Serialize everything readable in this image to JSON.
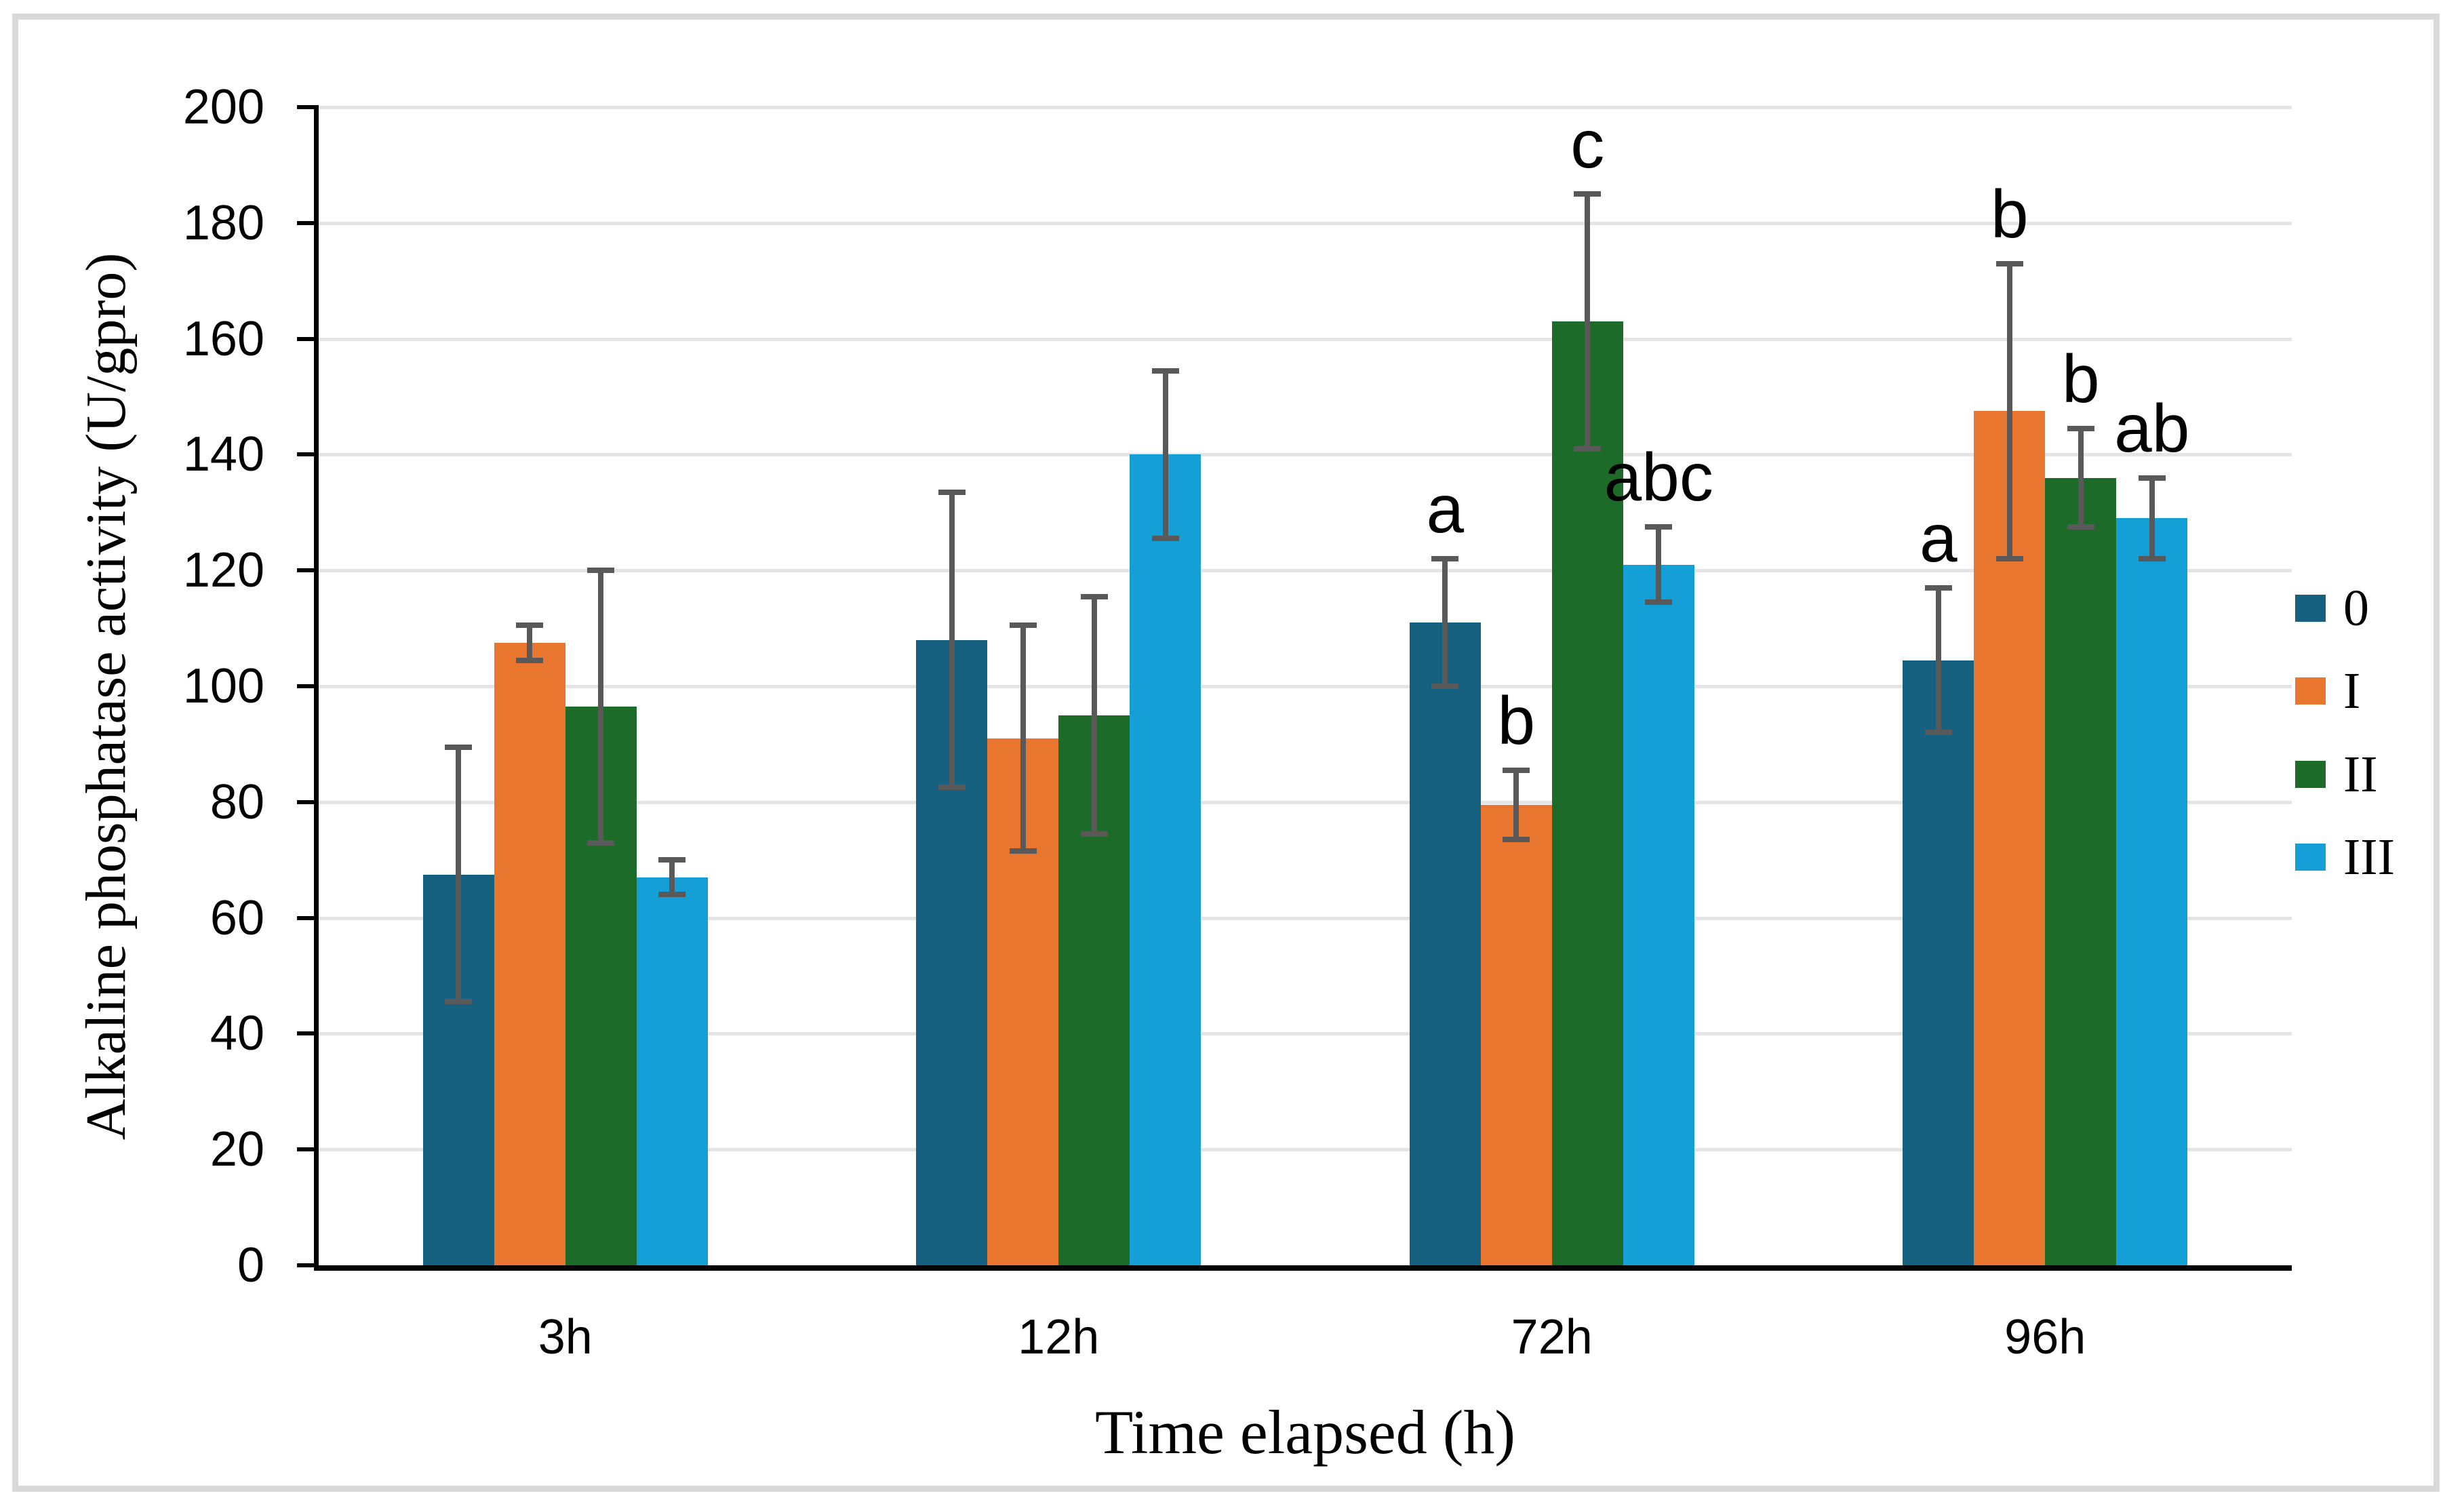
{
  "figure": {
    "background_color": "#ffffff",
    "border_color": "#d9d9d9"
  },
  "chart_data": {
    "type": "bar",
    "title": "",
    "xlabel": "Time elapsed (h)",
    "ylabel": "Alkaline phosphatase activity (U/gpro)",
    "categories": [
      "3h",
      "12h",
      "72h",
      "96h"
    ],
    "series": [
      {
        "name": "0",
        "color": "#166080",
        "values": [
          67.5,
          108,
          111,
          104.5
        ],
        "errors": [
          22,
          25.5,
          11,
          12.5
        ]
      },
      {
        "name": "I",
        "color": "#e8762e",
        "values": [
          107.5,
          91,
          79.5,
          147.5
        ],
        "errors": [
          3,
          19.5,
          6,
          25.5
        ]
      },
      {
        "name": "II",
        "color": "#1d6b28",
        "values": [
          96.5,
          95,
          163,
          136
        ],
        "errors": [
          23.5,
          20.5,
          22,
          8.5
        ]
      },
      {
        "name": "III",
        "color": "#14a0d6",
        "values": [
          67,
          140,
          121,
          129
        ],
        "errors": [
          3,
          14.5,
          6.5,
          7
        ]
      }
    ],
    "annotations": [
      {
        "category": "72h",
        "series": "0",
        "text": "a"
      },
      {
        "category": "72h",
        "series": "I",
        "text": "b"
      },
      {
        "category": "72h",
        "series": "II",
        "text": "c"
      },
      {
        "category": "72h",
        "series": "III",
        "text": "abc"
      },
      {
        "category": "96h",
        "series": "0",
        "text": "a"
      },
      {
        "category": "96h",
        "series": "I",
        "text": "b"
      },
      {
        "category": "96h",
        "series": "II",
        "text": "b"
      },
      {
        "category": "96h",
        "series": "III",
        "text": "ab"
      }
    ],
    "ylim": [
      0,
      200
    ],
    "ytick_step": 20,
    "ytick_labels": [
      "0",
      "20",
      "40",
      "60",
      "80",
      "100",
      "120",
      "140",
      "160",
      "180",
      "200"
    ],
    "grid": true,
    "gridline_color": "#e4e4e4",
    "error_bar_color": "#595959",
    "legend_position": "right"
  }
}
